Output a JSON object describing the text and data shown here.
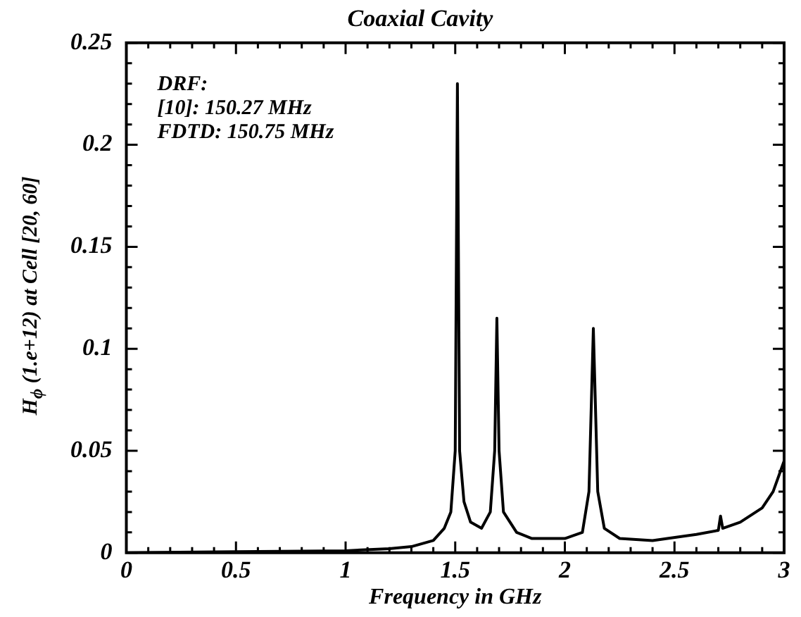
{
  "chart_data": {
    "type": "line",
    "title": "Coaxial Cavity",
    "xlabel": "Frequency in GHz",
    "ylabel": "H$_{ϕ}$ (1.e+12) at Cell [20, 60]",
    "annotations": [
      "DRF:",
      "[10]: 150.27 MHz",
      "FDTD: 150.75 MHz"
    ],
    "x": [
      0,
      0.5,
      1.0,
      1.2,
      1.3,
      1.4,
      1.45,
      1.48,
      1.5,
      1.51,
      1.52,
      1.54,
      1.57,
      1.62,
      1.66,
      1.68,
      1.69,
      1.7,
      1.72,
      1.78,
      1.85,
      2.0,
      2.08,
      2.11,
      2.13,
      2.15,
      2.18,
      2.25,
      2.4,
      2.6,
      2.7,
      2.71,
      2.72,
      2.8,
      2.9,
      2.95,
      3.0
    ],
    "series": [
      {
        "color": "#000000",
        "values": [
          0,
          0.0005,
          0.001,
          0.002,
          0.003,
          0.006,
          0.012,
          0.02,
          0.05,
          0.23,
          0.05,
          0.025,
          0.015,
          0.012,
          0.02,
          0.05,
          0.115,
          0.05,
          0.02,
          0.01,
          0.007,
          0.007,
          0.01,
          0.03,
          0.11,
          0.03,
          0.012,
          0.007,
          0.006,
          0.009,
          0.011,
          0.018,
          0.012,
          0.015,
          0.022,
          0.03,
          0.045
        ]
      }
    ],
    "xlim": [
      0,
      3
    ],
    "xticks": [
      0,
      0.5,
      1,
      1.5,
      2,
      2.5,
      3
    ],
    "ylim": [
      0,
      0.25
    ],
    "yticks": [
      0,
      0.05,
      0.1,
      0.15,
      0.2,
      0.25
    ],
    "grid": false,
    "legend": false,
    "marker": "none",
    "line_style": "solid"
  }
}
